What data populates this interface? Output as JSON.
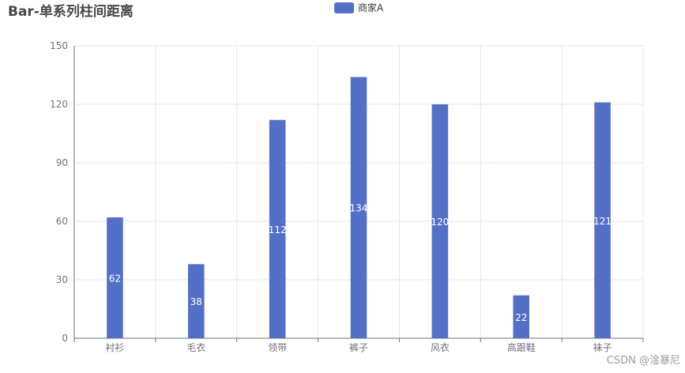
{
  "chart_data": {
    "type": "bar",
    "title": "Bar-单系列柱间距离",
    "categories": [
      "衬衫",
      "毛衣",
      "领带",
      "裤子",
      "风衣",
      "高跟鞋",
      "袜子"
    ],
    "series": [
      {
        "name": "商家A",
        "values": [
          62,
          38,
          112,
          134,
          120,
          22,
          121
        ],
        "color": "#5470c6",
        "label_position": "inside",
        "label_color": "#ffffff"
      }
    ],
    "xlabel": "",
    "ylabel": "",
    "ylim": [
      0,
      150
    ],
    "yticks": [
      "0",
      "30",
      "60",
      "90",
      "120",
      "150"
    ],
    "grid": true,
    "legend_position": "top-center"
  },
  "colors": {
    "grid": "#e0e6f1",
    "axis": "#6e7079",
    "tick_text": "#6e7079"
  },
  "watermark": "CSDN @淦暴尼"
}
